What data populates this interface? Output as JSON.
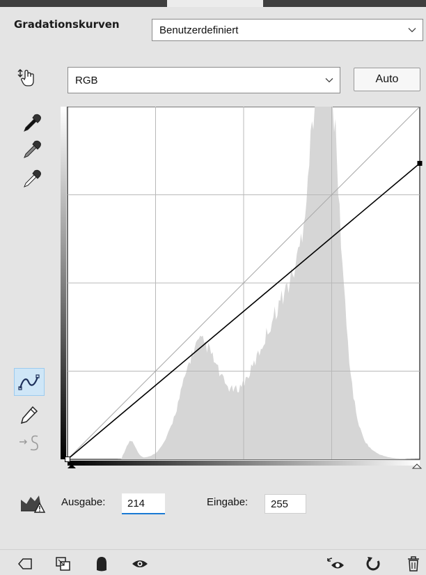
{
  "panel": {
    "title": "Gradationskurven",
    "preset": {
      "value": "Benutzerdefiniert"
    }
  },
  "channel": {
    "value": "RGB"
  },
  "auto_button": {
    "label": "Auto"
  },
  "left_tools": [
    {
      "name": "on-image-adjust-icon"
    },
    {
      "name": "black-point-eyedropper-icon"
    },
    {
      "name": "gray-point-eyedropper-icon"
    },
    {
      "name": "white-point-eyedropper-icon"
    },
    {
      "name": "curve-points-tool-icon",
      "active": true
    },
    {
      "name": "pencil-draw-tool-icon"
    },
    {
      "name": "smooth-curve-icon",
      "disabled": true
    }
  ],
  "curve": {
    "points": [
      {
        "input": 0,
        "output": 0
      },
      {
        "input": 255,
        "output": 214
      }
    ],
    "grid_divisions": 4
  },
  "fields": {
    "output_label": "Ausgabe:",
    "output_value": "214",
    "input_label": "Eingabe:",
    "input_value": "255"
  },
  "bottom_icons": [
    "clip-to-layer-icon",
    "view-previous-state-icon",
    "reset-icon",
    "visibility-eye-icon",
    "toggle-visibility-icon",
    "undo-icon",
    "trash-icon"
  ],
  "colors": {
    "histogram": "#d6d6d6",
    "grid": "#b8b8b8",
    "curve": "#000000",
    "accent": "#1a7ad4"
  }
}
